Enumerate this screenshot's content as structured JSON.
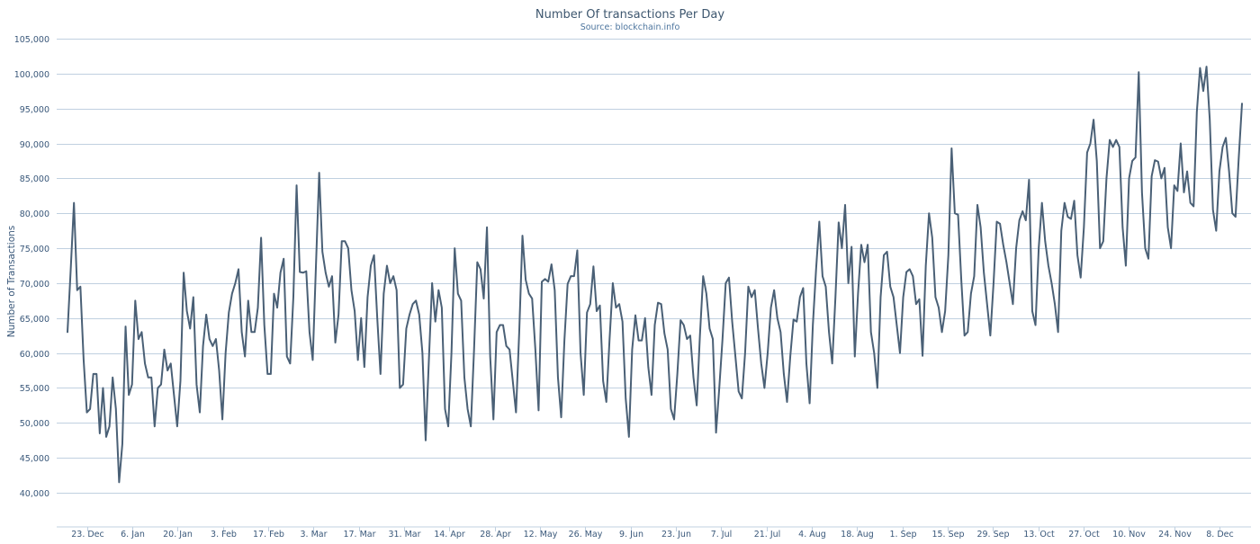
{
  "chart_data": {
    "type": "line",
    "title": "Number Of transactions Per Day",
    "subtitle": "Source: blockchain.info",
    "xlabel": "",
    "ylabel": "Number of Transactions",
    "ylim": [
      40000,
      105000
    ],
    "yticks": [
      40000,
      45000,
      50000,
      55000,
      60000,
      65000,
      70000,
      75000,
      80000,
      85000,
      90000,
      95000,
      100000,
      105000
    ],
    "ytick_labels": [
      "40,000",
      "45,000",
      "50,000",
      "55,000",
      "60,000",
      "65,000",
      "70,000",
      "75,000",
      "80,000",
      "85,000",
      "90,000",
      "95,000",
      "100,000",
      "105,000"
    ],
    "x_start": "2012-12-17",
    "x_end": "2013-12-15",
    "x_tick_dates": [
      "2012-12-23",
      "2013-01-06",
      "2013-01-20",
      "2013-02-03",
      "2013-02-17",
      "2013-03-03",
      "2013-03-17",
      "2013-03-31",
      "2013-04-14",
      "2013-04-28",
      "2013-05-12",
      "2013-05-26",
      "2013-06-09",
      "2013-06-23",
      "2013-07-07",
      "2013-07-21",
      "2013-08-04",
      "2013-08-18",
      "2013-09-01",
      "2013-09-15",
      "2013-09-29",
      "2013-10-13",
      "2013-10-27",
      "2013-11-10",
      "2013-11-24",
      "2013-12-08"
    ],
    "x_tick_labels": [
      "23. Dec",
      "6. Jan",
      "20. Jan",
      "3. Feb",
      "17. Feb",
      "3. Mar",
      "17. Mar",
      "31. Mar",
      "14. Apr",
      "28. Apr",
      "12. May",
      "26. May",
      "9. Jun",
      "23. Jun",
      "7. Jul",
      "21. Jul",
      "4. Aug",
      "18. Aug",
      "1. Sep",
      "15. Sep",
      "29. Sep",
      "13. Oct",
      "27. Oct",
      "10. Nov",
      "24. Nov",
      "8. Dec"
    ],
    "grid": true,
    "legend": false,
    "series": [
      {
        "color": "#4a6076",
        "values": [
          63000,
          72000,
          81500,
          69000,
          69500,
          59000,
          51500,
          52000,
          57000,
          57000,
          48500,
          55000,
          48000,
          49500,
          56500,
          52000,
          41500,
          47000,
          63800,
          54000,
          55500,
          67500,
          62000,
          63000,
          58500,
          56500,
          56500,
          49500,
          55000,
          55500,
          60500,
          57500,
          58500,
          54000,
          49500,
          56000,
          71500,
          66000,
          63500,
          68000,
          55500,
          51500,
          61000,
          65500,
          62000,
          61000,
          62000,
          57500,
          50500,
          60000,
          65800,
          68500,
          70000,
          72000,
          63000,
          59500,
          67500,
          63000,
          63000,
          66500,
          76500,
          64000,
          57000,
          57000,
          68500,
          66500,
          71500,
          73500,
          59500,
          58500,
          68000,
          84000,
          71600,
          71500,
          71700,
          63000,
          59000,
          72500,
          85800,
          74500,
          71500,
          69500,
          71000,
          61500,
          65500,
          76000,
          76000,
          75000,
          69000,
          66000,
          59000,
          65000,
          58000,
          68000,
          72500,
          74000,
          65000,
          57000,
          68500,
          72500,
          70000,
          71000,
          69000,
          55000,
          55500,
          63500,
          65500,
          67000,
          67500,
          65500,
          60000,
          47500,
          59000,
          70000,
          64500,
          69000,
          66500,
          52000,
          49500,
          60000,
          75000,
          68500,
          67500,
          56500,
          52000,
          49500,
          60500,
          73000,
          72000,
          67800,
          78000,
          59500,
          50500,
          63000,
          64000,
          64000,
          61000,
          60500,
          56000,
          51500,
          63000,
          76800,
          70500,
          68500,
          67800,
          60500,
          51800,
          70200,
          70600,
          70200,
          72700,
          69000,
          56500,
          50800,
          61800,
          69900,
          71000,
          71000,
          74700,
          60000,
          54000,
          65800,
          67000,
          72400,
          66000,
          66800,
          56000,
          53000,
          62000,
          70000,
          66500,
          67000,
          64500,
          53500,
          48000,
          60500,
          65400,
          61800,
          61800,
          65000,
          58000,
          54000,
          64000,
          67200,
          67000,
          62800,
          60500,
          52000,
          50500,
          57000,
          64700,
          64000,
          62000,
          62500,
          56500,
          52500,
          62500,
          71000,
          68500,
          63500,
          62000,
          48600,
          55000,
          62000,
          70000,
          70800,
          64500,
          59500,
          54500,
          53500,
          60000,
          69500,
          68000,
          69000,
          63500,
          58500,
          55000,
          60000,
          66500,
          69000,
          65000,
          63000,
          57000,
          53000,
          59500,
          64800,
          64500,
          68000,
          69300,
          58500,
          52800,
          64000,
          72000,
          78800,
          71000,
          69500,
          63000,
          58500,
          68000,
          78700,
          75000,
          81200,
          70000,
          75200,
          59500,
          68500,
          75500,
          73000,
          75500,
          63000,
          60000,
          55000,
          68000,
          74000,
          74500,
          69500,
          68000,
          64000,
          60000,
          68000,
          71600,
          72000,
          71000,
          67000,
          67700,
          59600,
          72500,
          80000,
          76500,
          68000,
          66500,
          63000,
          66000,
          74000,
          89300,
          80000,
          79800,
          70500,
          62500,
          63000,
          68500,
          71000,
          81200,
          78000,
          71500,
          67000,
          62500,
          70000,
          78800,
          78500,
          75500,
          73000,
          70000,
          67000,
          75000,
          79000,
          80300,
          79000,
          84800,
          66000,
          64000,
          75000,
          81500,
          76000,
          72500,
          70000,
          67000,
          63000,
          77500,
          81500,
          79500,
          79200,
          81800,
          74000,
          70800,
          78000,
          88700,
          90000,
          93400,
          87500,
          75000,
          76000,
          85000,
          90500,
          89500,
          90500,
          89500,
          78000,
          72500,
          85000,
          87500,
          88000,
          100200,
          83000,
          75000,
          73500,
          85300,
          87600,
          87400,
          85000,
          86500,
          78000,
          75000,
          84000,
          83200,
          90000,
          83000,
          86000,
          81500,
          81000,
          94500,
          100800,
          97500,
          101000,
          93500,
          80500,
          77500,
          86000,
          89500,
          90800,
          86000,
          80000,
          79500,
          88000,
          95700
        ]
      }
    ]
  }
}
